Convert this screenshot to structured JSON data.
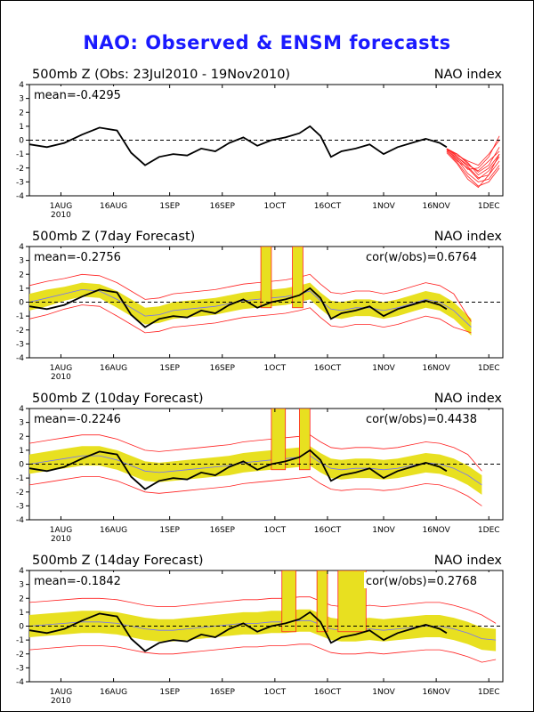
{
  "title": "NAO: Observed & ENSM forecasts",
  "x_ticks": [
    "1AUG",
    "16AUG",
    "1SEP",
    "16SEP",
    "1OCT",
    "16OCT",
    "1NOV",
    "16NOV",
    "1DEC"
  ],
  "x_year": "2010",
  "y_ticks": [
    "4",
    "3",
    "2",
    "1",
    "0",
    "-1",
    "-2",
    "-3",
    "-4"
  ],
  "colors": {
    "title": "#1a1aff",
    "observed": "#000000",
    "spread": "#e8e020",
    "members": "#ff2020",
    "ens_mean": "#7070ff"
  },
  "chart_data": [
    {
      "type": "line",
      "title": "500mb Z (Obs: 23Jul2010 - 19Nov2010)",
      "right_label": "NAO index",
      "stat_left": "mean=-0.4295",
      "stat_right": "",
      "xlim": [
        "2010-07-23",
        "2010-12-05"
      ],
      "ylim": [
        -4,
        4
      ],
      "observed": {
        "dates": [
          "2010-07-23",
          "2010-07-28",
          "2010-08-02",
          "2010-08-07",
          "2010-08-12",
          "2010-08-17",
          "2010-08-21",
          "2010-08-25",
          "2010-08-29",
          "2010-09-02",
          "2010-09-06",
          "2010-09-10",
          "2010-09-14",
          "2010-09-18",
          "2010-09-22",
          "2010-09-26",
          "2010-09-30",
          "2010-10-04",
          "2010-10-08",
          "2010-10-11",
          "2010-10-14",
          "2010-10-17",
          "2010-10-20",
          "2010-10-24",
          "2010-10-28",
          "2010-11-01",
          "2010-11-05",
          "2010-11-09",
          "2010-11-13",
          "2010-11-17",
          "2010-11-19"
        ],
        "values": [
          -0.3,
          -0.5,
          -0.2,
          0.4,
          0.9,
          0.7,
          -0.9,
          -1.8,
          -1.2,
          -1.0,
          -1.1,
          -0.6,
          -0.8,
          -0.2,
          0.2,
          -0.4,
          0.0,
          0.2,
          0.5,
          1.0,
          0.3,
          -1.2,
          -0.8,
          -0.6,
          -0.3,
          -1.0,
          -0.5,
          -0.2,
          0.1,
          -0.2,
          -0.5
        ]
      },
      "forecast_members": {
        "dates": [
          "2010-11-19",
          "2010-11-22",
          "2010-11-25",
          "2010-11-28",
          "2010-12-01",
          "2010-12-04"
        ],
        "members": [
          [
            -0.6,
            -1.2,
            -1.8,
            -2.2,
            -1.5,
            -0.8
          ],
          [
            -0.8,
            -1.5,
            -2.0,
            -2.8,
            -2.2,
            -1.2
          ],
          [
            -0.6,
            -1.0,
            -1.6,
            -2.5,
            -2.0,
            -1.0
          ],
          [
            -0.7,
            -1.4,
            -2.4,
            -3.0,
            -2.8,
            -1.8
          ],
          [
            -0.6,
            -1.1,
            -1.5,
            -1.8,
            -1.0,
            0.0
          ],
          [
            -0.8,
            -1.6,
            -2.6,
            -3.3,
            -3.0,
            -2.0
          ],
          [
            -0.7,
            -1.3,
            -2.1,
            -2.0,
            -1.2,
            0.3
          ],
          [
            -0.6,
            -1.2,
            -1.9,
            -2.7,
            -2.5,
            -1.5
          ],
          [
            -0.9,
            -1.7,
            -2.8,
            -3.4,
            -2.5,
            -1.0
          ],
          [
            -0.7,
            -1.0,
            -1.7,
            -2.3,
            -1.8,
            -0.5
          ]
        ]
      }
    },
    {
      "type": "line",
      "title": "500mb Z (7day Forecast)",
      "right_label": "NAO index",
      "stat_left": "mean=-0.2756",
      "stat_right": "cor(w/obs)=0.6764",
      "xlim": [
        "2010-07-23",
        "2010-12-05"
      ],
      "ylim": [
        -4,
        4
      ],
      "observed": {
        "dates": [
          "2010-07-23",
          "2010-07-28",
          "2010-08-02",
          "2010-08-07",
          "2010-08-12",
          "2010-08-17",
          "2010-08-21",
          "2010-08-25",
          "2010-08-29",
          "2010-09-02",
          "2010-09-06",
          "2010-09-10",
          "2010-09-14",
          "2010-09-18",
          "2010-09-22",
          "2010-09-26",
          "2010-09-30",
          "2010-10-04",
          "2010-10-08",
          "2010-10-11",
          "2010-10-14",
          "2010-10-17",
          "2010-10-20",
          "2010-10-24",
          "2010-10-28",
          "2010-11-01",
          "2010-11-05",
          "2010-11-09",
          "2010-11-13",
          "2010-11-17",
          "2010-11-19"
        ],
        "values": [
          -0.3,
          -0.5,
          -0.2,
          0.4,
          0.9,
          0.7,
          -0.9,
          -1.8,
          -1.2,
          -1.0,
          -1.1,
          -0.6,
          -0.8,
          -0.2,
          0.2,
          -0.4,
          0.0,
          0.2,
          0.5,
          1.0,
          0.3,
          -1.2,
          -0.8,
          -0.6,
          -0.3,
          -1.0,
          -0.5,
          -0.2,
          0.1,
          -0.2,
          -0.5
        ]
      },
      "forecast": {
        "dates": [
          "2010-07-23",
          "2010-07-28",
          "2010-08-02",
          "2010-08-07",
          "2010-08-12",
          "2010-08-17",
          "2010-08-21",
          "2010-08-25",
          "2010-08-29",
          "2010-09-02",
          "2010-09-06",
          "2010-09-10",
          "2010-09-14",
          "2010-09-18",
          "2010-09-22",
          "2010-09-26",
          "2010-09-30",
          "2010-10-04",
          "2010-10-08",
          "2010-10-11",
          "2010-10-14",
          "2010-10-17",
          "2010-10-20",
          "2010-10-24",
          "2010-10-28",
          "2010-11-01",
          "2010-11-05",
          "2010-11-09",
          "2010-11-13",
          "2010-11-17",
          "2010-11-21",
          "2010-11-26"
        ],
        "mean": [
          0.0,
          0.3,
          0.6,
          0.9,
          0.8,
          0.2,
          -0.4,
          -1.0,
          -0.9,
          -0.6,
          -0.5,
          -0.4,
          -0.3,
          -0.1,
          0.1,
          0.2,
          0.3,
          0.4,
          0.6,
          0.8,
          0.1,
          -0.5,
          -0.6,
          -0.4,
          -0.4,
          -0.6,
          -0.4,
          -0.1,
          0.2,
          0.0,
          -0.6,
          -1.8
        ],
        "spread_low": [
          -0.6,
          -0.3,
          0.1,
          0.4,
          0.3,
          -0.4,
          -1.0,
          -1.6,
          -1.5,
          -1.2,
          -1.1,
          -1.0,
          -0.9,
          -0.7,
          -0.5,
          -0.4,
          -0.3,
          -0.2,
          0.0,
          0.2,
          -0.5,
          -1.1,
          -1.2,
          -1.0,
          -1.0,
          -1.2,
          -1.0,
          -0.7,
          -0.4,
          -0.6,
          -1.2,
          -2.4
        ],
        "spread_high": [
          0.6,
          0.9,
          1.1,
          1.4,
          1.3,
          0.8,
          0.2,
          -0.4,
          -0.3,
          0.0,
          0.1,
          0.2,
          0.3,
          0.5,
          0.7,
          0.8,
          0.9,
          1.0,
          1.2,
          1.4,
          0.7,
          0.1,
          0.0,
          0.2,
          0.2,
          0.0,
          0.2,
          0.5,
          0.8,
          0.6,
          0.0,
          -1.2
        ],
        "range_low": [
          -1.2,
          -0.9,
          -0.5,
          -0.2,
          -0.3,
          -1.0,
          -1.6,
          -2.2,
          -2.1,
          -1.8,
          -1.7,
          -1.6,
          -1.5,
          -1.3,
          -1.1,
          -1.0,
          -0.9,
          -0.8,
          -0.6,
          -0.4,
          -1.1,
          -1.7,
          -1.8,
          -1.6,
          -1.6,
          -1.8,
          -1.6,
          -1.3,
          -1.0,
          -1.2,
          -1.8,
          -2.2
        ],
        "range_high": [
          1.2,
          1.5,
          1.7,
          2.0,
          1.9,
          1.4,
          0.8,
          0.2,
          0.3,
          0.6,
          0.7,
          0.8,
          0.9,
          1.1,
          1.3,
          1.4,
          1.5,
          1.6,
          1.8,
          2.0,
          1.3,
          0.7,
          0.6,
          0.8,
          0.8,
          0.6,
          0.8,
          1.1,
          1.4,
          1.2,
          0.6,
          -1.4
        ]
      },
      "spikes": [
        [
          "2010-09-27",
          "2010-09-30"
        ],
        [
          "2010-10-06",
          "2010-10-09"
        ]
      ]
    },
    {
      "type": "line",
      "title": "500mb Z (10day Forecast)",
      "right_label": "NAO index",
      "stat_left": "mean=-0.2246",
      "stat_right": "cor(w/obs)=0.4438",
      "xlim": [
        "2010-07-23",
        "2010-12-05"
      ],
      "ylim": [
        -4,
        4
      ],
      "observed": {
        "dates": [
          "2010-07-23",
          "2010-07-28",
          "2010-08-02",
          "2010-08-07",
          "2010-08-12",
          "2010-08-17",
          "2010-08-21",
          "2010-08-25",
          "2010-08-29",
          "2010-09-02",
          "2010-09-06",
          "2010-09-10",
          "2010-09-14",
          "2010-09-18",
          "2010-09-22",
          "2010-09-26",
          "2010-09-30",
          "2010-10-04",
          "2010-10-08",
          "2010-10-11",
          "2010-10-14",
          "2010-10-17",
          "2010-10-20",
          "2010-10-24",
          "2010-10-28",
          "2010-11-01",
          "2010-11-05",
          "2010-11-09",
          "2010-11-13",
          "2010-11-17",
          "2010-11-19"
        ],
        "values": [
          -0.3,
          -0.5,
          -0.2,
          0.4,
          0.9,
          0.7,
          -0.9,
          -1.8,
          -1.2,
          -1.0,
          -1.1,
          -0.6,
          -0.8,
          -0.2,
          0.2,
          -0.4,
          0.0,
          0.2,
          0.5,
          1.0,
          0.3,
          -1.2,
          -0.8,
          -0.6,
          -0.3,
          -1.0,
          -0.5,
          -0.2,
          0.1,
          -0.2,
          -0.5
        ]
      },
      "forecast": {
        "dates": [
          "2010-07-23",
          "2010-07-28",
          "2010-08-02",
          "2010-08-07",
          "2010-08-12",
          "2010-08-17",
          "2010-08-21",
          "2010-08-25",
          "2010-08-29",
          "2010-09-02",
          "2010-09-06",
          "2010-09-10",
          "2010-09-14",
          "2010-09-18",
          "2010-09-22",
          "2010-09-26",
          "2010-09-30",
          "2010-10-04",
          "2010-10-08",
          "2010-10-11",
          "2010-10-14",
          "2010-10-17",
          "2010-10-20",
          "2010-10-24",
          "2010-10-28",
          "2010-11-01",
          "2010-11-05",
          "2010-11-09",
          "2010-11-13",
          "2010-11-17",
          "2010-11-21",
          "2010-11-25",
          "2010-11-29"
        ],
        "mean": [
          0.0,
          0.2,
          0.4,
          0.6,
          0.6,
          0.3,
          -0.1,
          -0.5,
          -0.6,
          -0.5,
          -0.4,
          -0.3,
          -0.2,
          -0.1,
          0.1,
          0.2,
          0.3,
          0.4,
          0.5,
          0.6,
          0.1,
          -0.3,
          -0.4,
          -0.3,
          -0.3,
          -0.4,
          -0.3,
          -0.1,
          0.1,
          0.0,
          -0.3,
          -0.8,
          -1.5
        ],
        "spread_low": [
          -0.7,
          -0.5,
          -0.3,
          -0.1,
          -0.1,
          -0.4,
          -0.8,
          -1.2,
          -1.3,
          -1.2,
          -1.1,
          -1.0,
          -0.9,
          -0.8,
          -0.6,
          -0.5,
          -0.4,
          -0.3,
          -0.2,
          -0.1,
          -0.6,
          -1.0,
          -1.1,
          -1.0,
          -1.0,
          -1.1,
          -1.0,
          -0.8,
          -0.6,
          -0.7,
          -1.0,
          -1.5,
          -2.2
        ],
        "spread_high": [
          0.7,
          0.9,
          1.1,
          1.3,
          1.3,
          1.0,
          0.6,
          0.2,
          0.1,
          0.2,
          0.3,
          0.4,
          0.5,
          0.6,
          0.8,
          0.9,
          1.0,
          1.1,
          1.2,
          1.3,
          0.8,
          0.4,
          0.3,
          0.4,
          0.4,
          0.3,
          0.4,
          0.6,
          0.8,
          0.7,
          0.4,
          -0.1,
          -0.8
        ],
        "range_low": [
          -1.5,
          -1.3,
          -1.1,
          -0.9,
          -0.9,
          -1.2,
          -1.6,
          -2.0,
          -2.1,
          -2.0,
          -1.9,
          -1.8,
          -1.7,
          -1.6,
          -1.4,
          -1.3,
          -1.2,
          -1.1,
          -1.0,
          -0.9,
          -1.4,
          -1.8,
          -1.9,
          -1.8,
          -1.8,
          -1.9,
          -1.8,
          -1.6,
          -1.4,
          -1.5,
          -1.8,
          -2.3,
          -3.0
        ],
        "range_high": [
          1.5,
          1.7,
          1.9,
          2.1,
          2.1,
          1.8,
          1.4,
          1.0,
          0.9,
          1.0,
          1.1,
          1.2,
          1.3,
          1.4,
          1.6,
          1.7,
          1.8,
          1.9,
          2.0,
          2.1,
          1.6,
          1.2,
          1.1,
          1.2,
          1.2,
          1.1,
          1.2,
          1.4,
          1.6,
          1.5,
          1.2,
          0.7,
          -0.5
        ]
      },
      "spikes": [
        [
          "2010-09-30",
          "2010-10-04"
        ],
        [
          "2010-10-08",
          "2010-10-11"
        ]
      ]
    },
    {
      "type": "line",
      "title": "500mb Z (14day Forecast)",
      "right_label": "NAO index",
      "stat_left": "mean=-0.1842",
      "stat_right": "cor(w/obs)=0.2768",
      "xlim": [
        "2010-07-23",
        "2010-12-05"
      ],
      "ylim": [
        -4,
        4
      ],
      "observed": {
        "dates": [
          "2010-07-23",
          "2010-07-28",
          "2010-08-02",
          "2010-08-07",
          "2010-08-12",
          "2010-08-17",
          "2010-08-21",
          "2010-08-25",
          "2010-08-29",
          "2010-09-02",
          "2010-09-06",
          "2010-09-10",
          "2010-09-14",
          "2010-09-18",
          "2010-09-22",
          "2010-09-26",
          "2010-09-30",
          "2010-10-04",
          "2010-10-08",
          "2010-10-11",
          "2010-10-14",
          "2010-10-17",
          "2010-10-20",
          "2010-10-24",
          "2010-10-28",
          "2010-11-01",
          "2010-11-05",
          "2010-11-09",
          "2010-11-13",
          "2010-11-17",
          "2010-11-19"
        ],
        "values": [
          -0.3,
          -0.5,
          -0.2,
          0.4,
          0.9,
          0.7,
          -0.9,
          -1.8,
          -1.2,
          -1.0,
          -1.1,
          -0.6,
          -0.8,
          -0.2,
          0.2,
          -0.4,
          0.0,
          0.2,
          0.5,
          1.0,
          0.3,
          -1.2,
          -0.8,
          -0.6,
          -0.3,
          -1.0,
          -0.5,
          -0.2,
          0.1,
          -0.2,
          -0.5
        ]
      },
      "forecast": {
        "dates": [
          "2010-07-23",
          "2010-07-28",
          "2010-08-02",
          "2010-08-07",
          "2010-08-12",
          "2010-08-17",
          "2010-08-21",
          "2010-08-25",
          "2010-08-29",
          "2010-09-02",
          "2010-09-06",
          "2010-09-10",
          "2010-09-14",
          "2010-09-18",
          "2010-09-22",
          "2010-09-26",
          "2010-09-30",
          "2010-10-04",
          "2010-10-08",
          "2010-10-11",
          "2010-10-14",
          "2010-10-17",
          "2010-10-20",
          "2010-10-24",
          "2010-10-28",
          "2010-11-01",
          "2010-11-05",
          "2010-11-09",
          "2010-11-13",
          "2010-11-17",
          "2010-11-21",
          "2010-11-25",
          "2010-11-29",
          "2010-12-03"
        ],
        "mean": [
          0.0,
          0.1,
          0.2,
          0.3,
          0.3,
          0.2,
          0.0,
          -0.2,
          -0.3,
          -0.3,
          -0.2,
          -0.1,
          0.0,
          0.1,
          0.2,
          0.2,
          0.3,
          0.3,
          0.4,
          0.4,
          0.1,
          -0.2,
          -0.3,
          -0.3,
          -0.2,
          -0.3,
          -0.2,
          -0.1,
          0.0,
          0.0,
          -0.2,
          -0.5,
          -0.9,
          -1.0
        ],
        "spread_low": [
          -0.8,
          -0.7,
          -0.6,
          -0.5,
          -0.5,
          -0.6,
          -0.8,
          -1.0,
          -1.1,
          -1.1,
          -1.0,
          -0.9,
          -0.8,
          -0.7,
          -0.6,
          -0.6,
          -0.5,
          -0.5,
          -0.4,
          -0.4,
          -0.7,
          -1.0,
          -1.1,
          -1.1,
          -1.0,
          -1.1,
          -1.0,
          -0.9,
          -0.8,
          -0.8,
          -1.0,
          -1.3,
          -1.7,
          -1.8
        ],
        "spread_high": [
          0.8,
          0.9,
          1.0,
          1.1,
          1.1,
          1.0,
          0.8,
          0.6,
          0.5,
          0.5,
          0.6,
          0.7,
          0.8,
          0.9,
          1.0,
          1.0,
          1.1,
          1.1,
          1.2,
          1.2,
          0.9,
          0.6,
          0.5,
          0.5,
          0.6,
          0.5,
          0.6,
          0.7,
          0.8,
          0.8,
          0.6,
          0.3,
          -0.1,
          -0.2
        ],
        "range_low": [
          -1.7,
          -1.6,
          -1.5,
          -1.4,
          -1.4,
          -1.5,
          -1.7,
          -1.9,
          -2.0,
          -2.0,
          -1.9,
          -1.8,
          -1.7,
          -1.6,
          -1.5,
          -1.5,
          -1.4,
          -1.4,
          -1.3,
          -1.3,
          -1.6,
          -1.9,
          -2.0,
          -2.0,
          -1.9,
          -2.0,
          -1.9,
          -1.8,
          -1.7,
          -1.7,
          -1.9,
          -2.2,
          -2.6,
          -2.4
        ],
        "range_high": [
          1.7,
          1.8,
          1.9,
          2.0,
          2.0,
          1.9,
          1.7,
          1.5,
          1.4,
          1.4,
          1.5,
          1.6,
          1.7,
          1.8,
          1.9,
          1.9,
          2.0,
          2.0,
          2.1,
          2.1,
          1.8,
          1.5,
          1.4,
          1.4,
          1.5,
          1.4,
          1.5,
          1.6,
          1.7,
          1.7,
          1.5,
          1.2,
          0.8,
          0.2
        ]
      },
      "spikes": [
        [
          "2010-10-03",
          "2010-10-07"
        ],
        [
          "2010-10-13",
          "2010-10-16"
        ],
        [
          "2010-10-19",
          "2010-10-27"
        ]
      ]
    }
  ]
}
